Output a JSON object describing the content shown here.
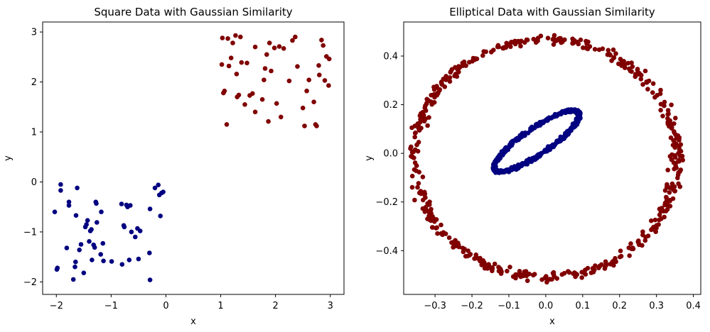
{
  "chart_data": [
    {
      "type": "scatter",
      "title": "Square Data with Gaussian Similarity",
      "xlabel": "x",
      "ylabel": "y",
      "xlim": [
        -2.25,
        3.25
      ],
      "ylim": [
        -2.25,
        3.2
      ],
      "xticks": [
        -2,
        -1,
        0,
        1,
        2,
        3
      ],
      "yticks": [
        -2,
        -1,
        0,
        1,
        2,
        3
      ],
      "xtick_labels": [
        "−2",
        "−1",
        "0",
        "1",
        "2",
        "3"
      ],
      "ytick_labels": [
        "−2",
        "−1",
        "0",
        "1",
        "2",
        "3"
      ],
      "grid": false,
      "series": [
        {
          "color": "#000080",
          "points": [
            [
              -1.98,
              -1.72
            ],
            [
              -1.99,
              -1.75
            ],
            [
              -2.03,
              -0.6
            ],
            [
              -1.92,
              -0.05
            ],
            [
              -1.92,
              -0.17
            ],
            [
              -1.81,
              -1.32
            ],
            [
              -1.77,
              -0.4
            ],
            [
              -1.77,
              -0.47
            ],
            [
              -1.69,
              -1.95
            ],
            [
              -1.66,
              -1.7
            ],
            [
              -1.65,
              -1.6
            ],
            [
              -1.64,
              -0.67
            ],
            [
              -1.62,
              -0.12
            ],
            [
              -1.58,
              -1.36
            ],
            [
              -1.55,
              -1.25
            ],
            [
              -1.5,
              -1.82
            ],
            [
              -1.47,
              -0.9
            ],
            [
              -1.43,
              -0.77
            ],
            [
              -1.4,
              -1.19
            ],
            [
              -1.38,
              -0.98
            ],
            [
              -1.36,
              -0.95
            ],
            [
              -1.35,
              -1.56
            ],
            [
              -1.32,
              -1.26
            ],
            [
              -1.3,
              -1.31
            ],
            [
              -1.28,
              -0.4
            ],
            [
              -1.27,
              -0.43
            ],
            [
              -1.26,
              -0.81
            ],
            [
              -1.19,
              -1.45
            ],
            [
              -1.18,
              -0.6
            ],
            [
              -1.15,
              -1.23
            ],
            [
              -1.14,
              -1.58
            ],
            [
              -0.99,
              -1.59
            ],
            [
              -0.81,
              -0.44
            ],
            [
              -0.8,
              -1.65
            ],
            [
              -0.77,
              -0.87
            ],
            [
              -0.76,
              -0.9
            ],
            [
              -0.72,
              -0.46
            ],
            [
              -0.7,
              -0.5
            ],
            [
              -0.67,
              -1.56
            ],
            [
              -0.65,
              -0.47
            ],
            [
              -0.63,
              -1.0
            ],
            [
              -0.56,
              -1.1
            ],
            [
              -0.52,
              -0.93
            ],
            [
              -0.5,
              -1.54
            ],
            [
              -0.47,
              -0.98
            ],
            [
              -0.3,
              -1.42
            ],
            [
              -0.29,
              -0.54
            ],
            [
              -0.29,
              -1.96
            ],
            [
              -0.2,
              -0.12
            ],
            [
              -0.14,
              -0.06
            ],
            [
              -0.12,
              -0.26
            ],
            [
              -0.1,
              -0.68
            ],
            [
              -0.05,
              -0.2
            ],
            [
              -0.08,
              -0.22
            ],
            [
              -1.45,
              -0.85
            ]
          ]
        },
        {
          "color": "#800000",
          "points": [
            [
              1.02,
              2.35
            ],
            [
              1.03,
              2.88
            ],
            [
              1.05,
              1.78
            ],
            [
              1.07,
              1.82
            ],
            [
              1.11,
              1.15
            ],
            [
              1.13,
              2.87
            ],
            [
              1.15,
              2.32
            ],
            [
              1.19,
              2.48
            ],
            [
              1.22,
              2.78
            ],
            [
              1.27,
              2.93
            ],
            [
              1.29,
              2.16
            ],
            [
              1.3,
              1.7
            ],
            [
              1.33,
              1.74
            ],
            [
              1.36,
              2.9
            ],
            [
              1.38,
              2.39
            ],
            [
              1.44,
              1.55
            ],
            [
              1.48,
              2.38
            ],
            [
              1.53,
              1.73
            ],
            [
              1.58,
              1.77
            ],
            [
              1.63,
              2.7
            ],
            [
              1.63,
              1.4
            ],
            [
              1.76,
              1.65
            ],
            [
              1.79,
              2.04
            ],
            [
              1.81,
              2.27
            ],
            [
              1.84,
              2.55
            ],
            [
              1.87,
              1.21
            ],
            [
              1.89,
              2.78
            ],
            [
              1.92,
              2.22
            ],
            [
              1.98,
              2.68
            ],
            [
              2.02,
              1.57
            ],
            [
              2.07,
              2.71
            ],
            [
              2.1,
              1.3
            ],
            [
              2.15,
              2.67
            ],
            [
              2.25,
              2.02
            ],
            [
              2.31,
              2.83
            ],
            [
              2.36,
              2.9
            ],
            [
              2.4,
              2.31
            ],
            [
              2.5,
              1.48
            ],
            [
              2.53,
              1.12
            ],
            [
              2.57,
              1.82
            ],
            [
              2.61,
              2.04
            ],
            [
              2.7,
              1.6
            ],
            [
              2.73,
              1.15
            ],
            [
              2.75,
              1.12
            ],
            [
              2.79,
              2.33
            ],
            [
              2.84,
              2.84
            ],
            [
              2.87,
              2.73
            ],
            [
              2.9,
              2.03
            ],
            [
              2.93,
              2.51
            ],
            [
              2.97,
              1.93
            ],
            [
              2.98,
              2.46
            ],
            [
              2.8,
              2.14
            ]
          ]
        }
      ]
    },
    {
      "type": "scatter",
      "title": "Elliptical Data with Gaussian Similarity",
      "xlabel": "x",
      "ylabel": "y",
      "xlim": [
        -0.385,
        0.42
      ],
      "ylim": [
        -0.58,
        0.54
      ],
      "xticks": [
        -0.3,
        -0.2,
        -0.1,
        0.0,
        0.1,
        0.2,
        0.3,
        0.4
      ],
      "yticks": [
        -0.4,
        -0.2,
        0.0,
        0.2,
        0.4
      ],
      "xtick_labels": [
        "−0.3",
        "−0.2",
        "−0.1",
        "0.0",
        "0.1",
        "0.2",
        "0.3",
        "0.4"
      ],
      "ytick_labels": [
        "−0.4",
        "−0.2",
        "0.0",
        "0.2",
        "0.4"
      ],
      "grid": false,
      "series": [
        {
          "color": "#800000",
          "shape": "ring",
          "center": [
            0.0,
            -0.02
          ],
          "radius_x": 0.355,
          "radius_y": 0.49,
          "jitter": 0.025,
          "count": 520
        },
        {
          "color": "#000080",
          "shape": "tilted-ellipse",
          "center": [
            -0.025,
            0.05
          ],
          "semi_major": 0.165,
          "semi_minor": 0.045,
          "angle_deg": 48,
          "jitter": 0.008,
          "count": 560
        }
      ]
    }
  ]
}
